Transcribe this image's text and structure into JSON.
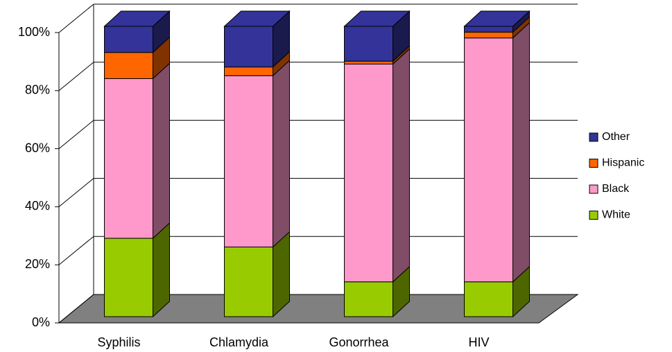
{
  "chart_data": {
    "type": "bar3d_stacked",
    "categories": [
      "Syphilis",
      "Chlamydia",
      "Gonorrhea",
      "HIV"
    ],
    "series": [
      {
        "name": "White",
        "color": "#99cc00",
        "side_color": "#4d6600",
        "values": [
          27,
          24,
          12,
          12
        ]
      },
      {
        "name": "Black",
        "color": "#ff99cc",
        "side_color": "#804d66",
        "values": [
          55,
          59,
          75,
          84
        ]
      },
      {
        "name": "Hispanic",
        "color": "#ff6600",
        "side_color": "#803300",
        "values": [
          9,
          3,
          1,
          2
        ]
      },
      {
        "name": "Other",
        "color": "#333399",
        "side_color": "#1a1a4d",
        "values": [
          9,
          14,
          12,
          2
        ]
      }
    ],
    "ylim": [
      0,
      100
    ],
    "yticks": [
      {
        "value": 0,
        "label": "0%"
      },
      {
        "value": 20,
        "label": "20%"
      },
      {
        "value": 40,
        "label": "40%"
      },
      {
        "value": 60,
        "label": "60%"
      },
      {
        "value": 80,
        "label": "80%"
      },
      {
        "value": 100,
        "label": "100%"
      }
    ],
    "grid": true,
    "floor_color": "#808080",
    "legend": "right"
  }
}
